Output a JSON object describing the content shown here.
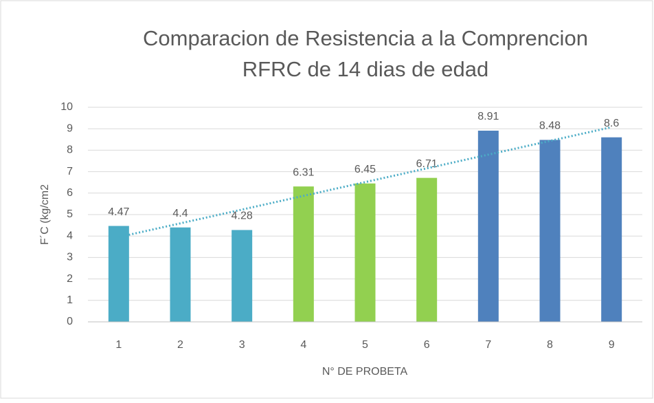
{
  "chart_data": {
    "type": "bar",
    "title": [
      "Comparacion de Resistencia a la Comprencion",
      "RFRC de 14 dias de edad"
    ],
    "x_label": "N° DE PROBETA",
    "y_label": "F´C (kg/cm2",
    "categories": [
      "1",
      "2",
      "3",
      "4",
      "5",
      "6",
      "7",
      "8",
      "9"
    ],
    "values": [
      4.47,
      4.4,
      4.28,
      6.31,
      6.45,
      6.71,
      8.91,
      8.48,
      8.6
    ],
    "colors": [
      "#4bacc6",
      "#4bacc6",
      "#4bacc6",
      "#92d050",
      "#92d050",
      "#92d050",
      "#4f81bd",
      "#4f81bd",
      "#4f81bd"
    ],
    "ylim": [
      0,
      10
    ],
    "yticks": [
      0,
      1,
      2,
      3,
      4,
      5,
      6,
      7,
      8,
      9,
      10
    ],
    "grid": true,
    "trendline": {
      "kind": "linear",
      "color": "#4bacc6",
      "style": "dotted"
    }
  }
}
